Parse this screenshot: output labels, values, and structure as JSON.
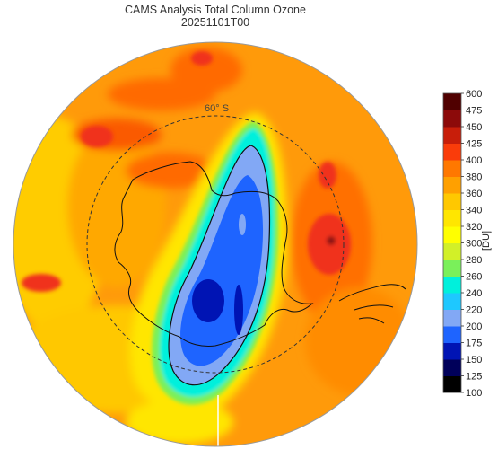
{
  "header": {
    "title": "CAMS Analysis  Total Column Ozone",
    "subtitle": "20251101T00"
  },
  "map": {
    "projection": "south-polar-stereographic",
    "graticule_label": "60° S",
    "field": "total column ozone",
    "features": [
      "ozone hole over Antarctica",
      "high-ozone collar",
      "coastlines"
    ]
  },
  "colorbar": {
    "unit": "[DU]",
    "levels": [
      "100",
      "125",
      "150",
      "175",
      "200",
      "220",
      "240",
      "260",
      "280",
      "300",
      "320",
      "340",
      "360",
      "380",
      "400",
      "425",
      "450",
      "475",
      "600"
    ],
    "colors": [
      "#000000",
      "#00005a",
      "#0014b4",
      "#1e64ff",
      "#82a8f5",
      "#1ec8ff",
      "#00f0dc",
      "#7af05a",
      "#d2f028",
      "#ffff00",
      "#ffe600",
      "#ffc800",
      "#ffa000",
      "#ff7800",
      "#fa3c0a",
      "#c81e0a",
      "#8c0a0a",
      "#500000"
    ]
  }
}
